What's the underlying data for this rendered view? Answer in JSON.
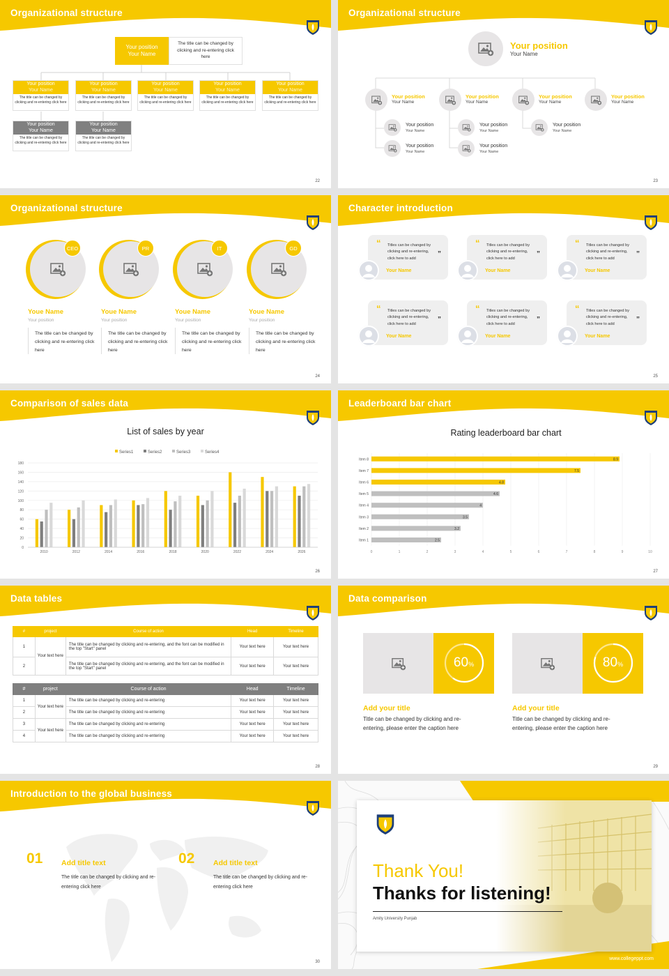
{
  "brand": {
    "yellow": "#f6c800",
    "gray": "#808080",
    "light": "#e7e5e6"
  },
  "icons": {
    "image": "image-placeholder-icon",
    "avatar": "person-avatar-icon",
    "quote": "quote-icon",
    "logo": "university-crest-logo"
  },
  "slides": {
    "s22": {
      "title": "Organizational structure",
      "page": "22",
      "top": {
        "pos": "Your position",
        "name": "Your Name",
        "desc": "The title can be changed by clicking and re-entering click here"
      },
      "boxes": [
        {
          "pos": "Your position",
          "name": "Your Name",
          "desc": "The title can be changed by clicking and re-entering click here"
        },
        {
          "pos": "Your position",
          "name": "Your Name",
          "desc": "The title can be changed by clicking and re-entering click here"
        },
        {
          "pos": "Your position",
          "name": "Your Name",
          "desc": "The title can be changed by clicking and re-entering click here"
        },
        {
          "pos": "Your position",
          "name": "Your Name",
          "desc": "The title can be changed by clicking and re-entering click here"
        },
        {
          "pos": "Your position",
          "name": "Your Name",
          "desc": "The title can be changed by clicking and re-entering click here"
        }
      ],
      "gray_boxes": [
        {
          "pos": "Your position",
          "name": "Your Name",
          "desc": "The title can be changed by clicking and re-entering click here"
        },
        {
          "pos": "Your position",
          "name": "Your Name",
          "desc": "The title can be changed by clicking and re-entering click here"
        }
      ]
    },
    "s23": {
      "title": "Organizational structure",
      "page": "23",
      "top": {
        "pos": "Your position",
        "name": "Your Name"
      },
      "level1": [
        {
          "pos": "Your position",
          "name": "Your Name"
        },
        {
          "pos": "Your position",
          "name": "Your Name"
        },
        {
          "pos": "Your position",
          "name": "Your Name"
        },
        {
          "pos": "Your position",
          "name": "Your Name"
        }
      ],
      "level2": [
        {
          "pos": "Your position",
          "name": "Your Name"
        },
        {
          "pos": "Your position",
          "name": "Your Name"
        },
        {
          "pos": "Your position",
          "name": "Your Name"
        },
        {
          "pos": "Your position",
          "name": "Your Name"
        },
        {
          "pos": "Your position",
          "name": "Your Name"
        }
      ]
    },
    "s24": {
      "title": "Organizational structure",
      "page": "24",
      "people": [
        {
          "badge": "CEO",
          "name": "Youe Name",
          "pos": "Your position",
          "desc": "The title can be changed by clicking and re-entering click here"
        },
        {
          "badge": "PR",
          "name": "Youe Name",
          "pos": "Your position",
          "desc": "The title can be changed by clicking and re-entering click here"
        },
        {
          "badge": "IT",
          "name": "Youe Name",
          "pos": "Your position",
          "desc": "The title can be changed by clicking and re-entering click here"
        },
        {
          "badge": "GD",
          "name": "Youe Name",
          "pos": "Your position",
          "desc": "The title can be changed by clicking and re-entering click here"
        }
      ]
    },
    "s25": {
      "title": "Character introduction",
      "page": "25",
      "cards": [
        {
          "text": "Titles can be changed by clicking and re-entering, click here to add",
          "name": "Your Name"
        },
        {
          "text": "Titles can be changed by clicking and re-entering, click here to add",
          "name": "Your Name"
        },
        {
          "text": "Titles can be changed by clicking and re-entering, click here to add",
          "name": "Your Name"
        },
        {
          "text": "Titles can be changed by clicking and re-entering, click here to add",
          "name": "Your Name"
        },
        {
          "text": "Titles can be changed by clicking and re-entering, click here to add",
          "name": "Your Name"
        },
        {
          "text": "Titles can be changed by clicking and re-entering, click here to add",
          "name": "Your Name"
        }
      ]
    },
    "s26": {
      "title": "Comparison of sales data",
      "page": "26"
    },
    "s27": {
      "title": "Leaderboard bar chart",
      "page": "27"
    },
    "s28": {
      "title": "Data tables",
      "page": "28",
      "t1": {
        "headers": [
          "#",
          "project",
          "Course of action",
          "Head",
          "Timeline"
        ],
        "project": "Your text here",
        "rows": [
          {
            "n": "1",
            "action": "The title can be changed by clicking and re-entering, and the font can be modified in the top \"Start\" panel",
            "head": "Your text here",
            "time": "Your text here"
          },
          {
            "n": "2",
            "action": "The title can be changed by clicking and re-entering, and the font can be modified in the top \"Start\" panel",
            "head": "Your text here",
            "time": "Your text here"
          }
        ]
      },
      "t2": {
        "headers": [
          "#",
          "project",
          "Course of action",
          "Head",
          "Timeline"
        ],
        "projects": [
          "Your text here",
          "Your text here"
        ],
        "rows": [
          {
            "n": "1",
            "action": "The title can be changed by clicking and re-entering",
            "head": "Your text here",
            "time": "Your text here"
          },
          {
            "n": "2",
            "action": "The title can be changed by clicking and re-entering",
            "head": "Your text here",
            "time": "Your text here"
          },
          {
            "n": "3",
            "action": "The title can be changed by clicking and re-entering",
            "head": "Your text here",
            "time": "Your text here"
          },
          {
            "n": "4",
            "action": "The title can be changed by clicking and re-entering",
            "head": "Your text here",
            "time": "Your text here"
          }
        ]
      }
    },
    "s29": {
      "title": "Data comparison",
      "page": "29",
      "items": [
        {
          "pct": "60",
          "unit": "%",
          "value": 0.6,
          "title": "Add your title",
          "desc": "Title can be changed by clicking and re-entering, please enter the caption here"
        },
        {
          "pct": "80",
          "unit": "%",
          "value": 0.8,
          "title": "Add your title",
          "desc": "Title can be changed by clicking and re-entering, please enter the caption here"
        }
      ]
    },
    "s30": {
      "title": "Introduction to the global business",
      "page": "30",
      "items": [
        {
          "num": "01",
          "title": "Add title text",
          "desc": "The title can be changed by clicking and re-entering click here"
        },
        {
          "num": "02",
          "title": "Add title text",
          "desc": "The title can be changed by clicking and re-entering click here"
        }
      ]
    },
    "s31": {
      "thank": "Thank You!",
      "listen": "Thanks for listening!",
      "uni": "Amity University Punjab",
      "url": "www.collegeppt.com"
    }
  },
  "chart_data": [
    {
      "type": "bar",
      "title": "List of sales by year",
      "categories": [
        "2010",
        "2012",
        "2014",
        "2016",
        "2018",
        "2020",
        "2022",
        "2024",
        "2026"
      ],
      "series": [
        {
          "name": "Series1",
          "color": "#f6c800",
          "values": [
            60,
            80,
            90,
            100,
            120,
            110,
            160,
            150,
            130
          ]
        },
        {
          "name": "Series2",
          "color": "#7f7f7f",
          "values": [
            55,
            60,
            75,
            90,
            80,
            90,
            95,
            120,
            110
          ]
        },
        {
          "name": "Series3",
          "color": "#bfbfbf",
          "values": [
            80,
            85,
            90,
            92,
            98,
            100,
            110,
            120,
            130
          ]
        },
        {
          "name": "Series4",
          "color": "#d9d9d9",
          "values": [
            95,
            100,
            102,
            105,
            110,
            120,
            125,
            130,
            135
          ]
        }
      ],
      "yticks": [
        "0",
        "20",
        "40",
        "60",
        "80",
        "100",
        "120",
        "140",
        "160",
        "180"
      ],
      "ylim": [
        0,
        180
      ],
      "legend": "top"
    },
    {
      "type": "bar",
      "orientation": "horizontal",
      "title": "Rating leaderboard bar chart",
      "categories": [
        "Item 8",
        "Item 7",
        "Item 6",
        "Item 5",
        "Item 4",
        "Item 3",
        "Item 2",
        "Item 1"
      ],
      "values": [
        8.9,
        7.5,
        4.8,
        4.6,
        4,
        3.5,
        3.2,
        2.5
      ],
      "value_labels": [
        "8.9",
        "7.5",
        "4.8",
        "4.6",
        "4",
        "3.5",
        "3.2",
        "2.5"
      ],
      "highlight": [
        "#f6c800",
        "#f6c800",
        "#f6c800",
        "#bfbfbf",
        "#bfbfbf",
        "#bfbfbf",
        "#bfbfbf",
        "#bfbfbf"
      ],
      "xticks": [
        "0",
        "1",
        "2",
        "3",
        "4",
        "5",
        "6",
        "7",
        "8",
        "9",
        "10"
      ],
      "xlim": [
        0,
        10
      ]
    }
  ]
}
